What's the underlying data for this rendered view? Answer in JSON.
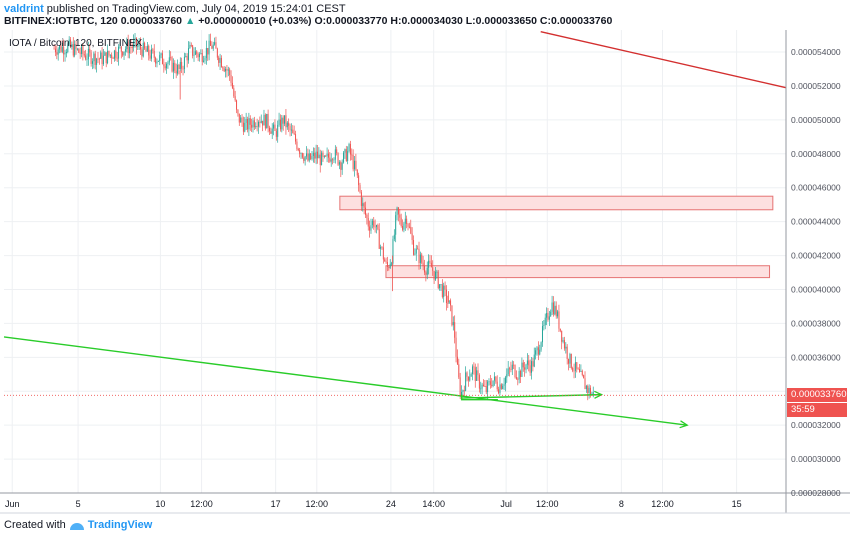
{
  "header": {
    "publisher": "valdrint",
    "published_text": "published on TradingView.com, July 04, 2019 15:24:01 CEST",
    "symbol": "BITFINEX:IOTBTC, 120",
    "last": "0.000033760",
    "change": "+0.000000010 (+0.03%)",
    "open_label": "O:",
    "open": "0.000033770",
    "high_label": "H:",
    "high": "0.000034030",
    "low_label": "L:",
    "low": "0.000033650",
    "close_label": "C:",
    "close": "0.000033760"
  },
  "legend_label": "IOTA / Bitcoin, 120, BITFINEX",
  "footer": {
    "created_with": "Created with",
    "brand": "TradingView"
  },
  "colors": {
    "up": "#26a69a",
    "down": "#ef5350",
    "trend_red": "#d32f2f",
    "trend_green": "#29cc29",
    "zone_fill": "#fde0e0",
    "zone_stroke": "#e57373",
    "grid": "#eef0f3",
    "axis": "#9598a1"
  },
  "chart_data": {
    "type": "candlestick",
    "ylim": [
      2.8e-05,
      5.53e-05
    ],
    "y_ticks": [
      "0.000054000",
      "0.000052000",
      "0.000050000",
      "0.000048000",
      "0.000046000",
      "0.000044000",
      "0.000042000",
      "0.000040000",
      "0.000038000",
      "0.000036000",
      "0.000034000",
      "0.000032000",
      "0.000030000",
      "0.000028000"
    ],
    "y_tick_values": [
      5.4e-05,
      5.2e-05,
      5e-05,
      4.8e-05,
      4.6e-05,
      4.4e-05,
      4.2e-05,
      4e-05,
      3.8e-05,
      3.6e-05,
      3.4e-05,
      3.2e-05,
      3e-05,
      2.8e-05
    ],
    "x_ticks": [
      {
        "label": "Jun",
        "t": 0
      },
      {
        "label": "5",
        "t": 4
      },
      {
        "label": "10",
        "t": 9
      },
      {
        "label": "12:00",
        "t": 11.5
      },
      {
        "label": "17",
        "t": 16
      },
      {
        "label": "12:00",
        "t": 18.5
      },
      {
        "label": "24",
        "t": 23
      },
      {
        "label": "14:00",
        "t": 25.6
      },
      {
        "label": "Jul",
        "t": 30
      },
      {
        "label": "12:00",
        "t": 32.5
      },
      {
        "label": "8",
        "t": 37
      },
      {
        "label": "12:00",
        "t": 39.5
      },
      {
        "label": "15",
        "t": 44
      }
    ],
    "xlim": [
      -0.5,
      47
    ],
    "price_path": [
      [
        2.5,
        5.42e-05
      ],
      [
        3.5,
        5.43e-05
      ],
      [
        4.5,
        5.38e-05
      ],
      [
        5.5,
        5.36e-05
      ],
      [
        6.5,
        5.41e-05
      ],
      [
        7.5,
        5.44e-05
      ],
      [
        8.5,
        5.38e-05
      ],
      [
        9.5,
        5.34e-05
      ],
      [
        10.2,
        5.29e-05
      ],
      [
        10.8,
        5.41e-05
      ],
      [
        11.5,
        5.38e-05
      ],
      [
        12.2,
        5.44e-05
      ],
      [
        12.8,
        5.34e-05
      ],
      [
        13.3,
        5.26e-05
      ],
      [
        13.7,
        5.02e-05
      ],
      [
        14.2,
        4.96e-05
      ],
      [
        15,
        5.01e-05
      ],
      [
        15.5,
        4.99e-05
      ],
      [
        16,
        4.92e-05
      ],
      [
        16.5,
        5e-05
      ],
      [
        17,
        4.92e-05
      ],
      [
        17.5,
        4.83e-05
      ],
      [
        18,
        4.76e-05
      ],
      [
        18.5,
        4.79e-05
      ],
      [
        19,
        4.75e-05
      ],
      [
        19.5,
        4.81e-05
      ],
      [
        20,
        4.75e-05
      ],
      [
        20.5,
        4.82e-05
      ],
      [
        20.9,
        4.7e-05
      ],
      [
        21.3,
        4.5e-05
      ],
      [
        21.7,
        4.38e-05
      ],
      [
        22,
        4.4e-05
      ],
      [
        22.4,
        4.26e-05
      ],
      [
        22.8,
        4.12e-05
      ],
      [
        23.1,
        4.2e-05
      ],
      [
        23.4,
        4.45e-05
      ],
      [
        23.7,
        4.38e-05
      ],
      [
        24,
        4.43e-05
      ],
      [
        24.4,
        4.25e-05
      ],
      [
        24.7,
        4.2e-05
      ],
      [
        25.1,
        4.13e-05
      ],
      [
        25.5,
        4.13e-05
      ],
      [
        25.9,
        4.05e-05
      ],
      [
        26.3,
        3.97e-05
      ],
      [
        26.6,
        3.9e-05
      ],
      [
        26.9,
        3.75e-05
      ],
      [
        27.1,
        3.5e-05
      ],
      [
        27.3,
        3.38e-05
      ],
      [
        27.6,
        3.48e-05
      ],
      [
        28,
        3.53e-05
      ],
      [
        28.4,
        3.45e-05
      ],
      [
        28.8,
        3.4e-05
      ],
      [
        29.2,
        3.47e-05
      ],
      [
        29.6,
        3.43e-05
      ],
      [
        30,
        3.48e-05
      ],
      [
        30.4,
        3.54e-05
      ],
      [
        30.8,
        3.5e-05
      ],
      [
        31.2,
        3.56e-05
      ],
      [
        31.6,
        3.55e-05
      ],
      [
        32,
        3.66e-05
      ],
      [
        32.4,
        3.79e-05
      ],
      [
        32.8,
        3.92e-05
      ],
      [
        33.1,
        3.86e-05
      ],
      [
        33.5,
        3.7e-05
      ],
      [
        33.9,
        3.58e-05
      ],
      [
        34.3,
        3.52e-05
      ],
      [
        34.7,
        3.46e-05
      ],
      [
        35,
        3.41e-05
      ],
      [
        35.3,
        3.38e-05
      ]
    ],
    "last_price": 3.376e-05,
    "last_price_label": "0.000033760",
    "countdown_label": "35:59",
    "resistance_zones": [
      {
        "t0": 19.9,
        "t1": 46.2,
        "y0": 4.47e-05,
        "y1": 4.55e-05
      },
      {
        "t0": 22.7,
        "t1": 46.0,
        "y0": 4.07e-05,
        "y1": 4.14e-05
      }
    ],
    "trend_lines": [
      {
        "color": "red",
        "t0": 32.1,
        "y0": 5.52e-05,
        "t1": 49.5,
        "y1": 5.19e-05,
        "arrow": false
      },
      {
        "color": "green",
        "t0": -0.5,
        "y0": 3.72e-05,
        "t1": 41,
        "y1": 3.2e-05,
        "arrow": true
      },
      {
        "color": "green",
        "t0": 27.3,
        "y0": 3.36e-05,
        "t1": 35.8,
        "y1": 3.38e-05,
        "arrow": true
      }
    ],
    "triangle": {
      "t_left": 27.3,
      "t_right": 29.5,
      "y_top": 3.38e-05,
      "y_bottom": 3.35e-05
    }
  }
}
